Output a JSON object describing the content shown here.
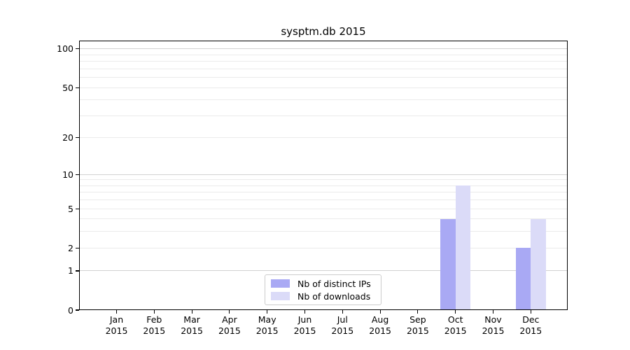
{
  "figure": {
    "title": "sysptm.db 2015"
  },
  "chart_data": {
    "type": "bar",
    "title": "sysptm.db 2015",
    "x_axis": {
      "months": [
        "Jan",
        "Feb",
        "Mar",
        "Apr",
        "May",
        "Jun",
        "Jul",
        "Aug",
        "Sep",
        "Oct",
        "Nov",
        "Dec"
      ],
      "year": "2015"
    },
    "y_axis": {
      "scale": "log1p",
      "tick_values": [
        0,
        1,
        2,
        5,
        10,
        20,
        50,
        100
      ],
      "ylim": [
        0,
        116
      ],
      "grid": true,
      "grid_minor_values": [
        2,
        3,
        4,
        5,
        6,
        7,
        8,
        9,
        20,
        30,
        40,
        50,
        60,
        70,
        80,
        90
      ],
      "grid_major_values": [
        1,
        10,
        100
      ]
    },
    "series": [
      {
        "name": "Nb of distinct IPs",
        "color": "#a9a9f4",
        "values": [
          0,
          0,
          0,
          0,
          0,
          0,
          0,
          0,
          0,
          4,
          0,
          2
        ]
      },
      {
        "name": "Nb of downloads",
        "color": "#dbdbf8",
        "values": [
          0,
          0,
          0,
          0,
          0,
          0,
          0,
          0,
          0,
          8,
          0,
          4
        ]
      }
    ],
    "legend": {
      "position": "lower center",
      "entries": [
        "Nb of distinct IPs",
        "Nb of downloads"
      ]
    },
    "colors": {
      "grid_minor": "#ebebeb",
      "grid_major": "#d2d2d2",
      "spine": "#000000",
      "background": "#ffffff"
    }
  }
}
